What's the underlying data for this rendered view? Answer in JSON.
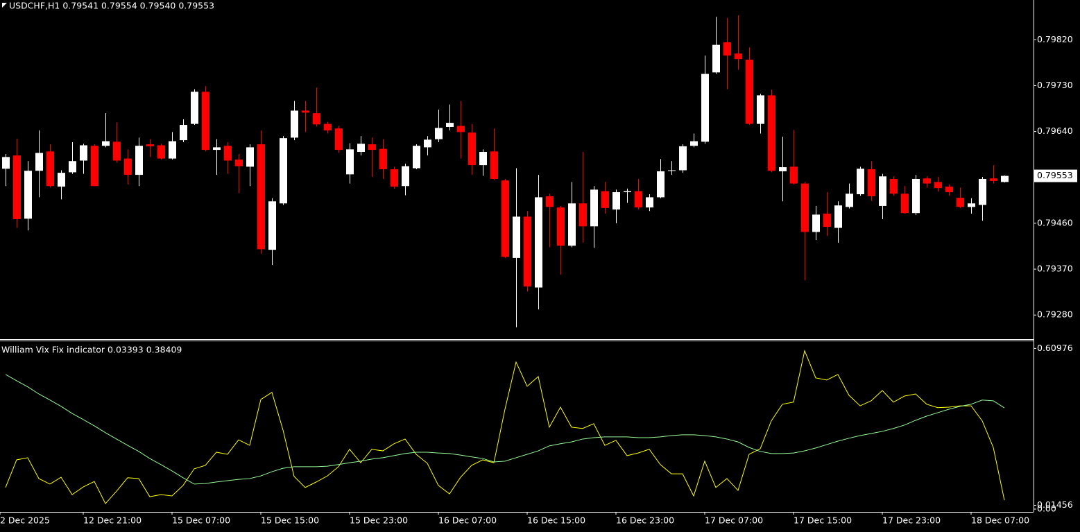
{
  "chart_data": [
    {
      "type": "candlestick",
      "title": "USDCHF,H1  0.79541 0.79554 0.79540 0.79553",
      "open": [
        0.79567,
        0.79593,
        0.79469,
        0.79563,
        0.79601,
        0.79532,
        0.7956,
        0.79583,
        0.79612,
        0.79612,
        0.7962,
        0.79587,
        0.79555,
        0.79615,
        0.79613,
        0.79587,
        0.79623,
        0.79655,
        0.79718,
        0.79604,
        0.79612,
        0.79585,
        0.79571,
        0.79615,
        0.79408,
        0.79499,
        0.79628,
        0.79681,
        0.79676,
        0.79655,
        0.79646,
        0.79556,
        0.796,
        0.79615,
        0.79606,
        0.79566,
        0.79533,
        0.79568,
        0.79609,
        0.79625,
        0.79649,
        0.79651,
        0.79638,
        0.79574,
        0.79601,
        0.79544,
        0.79392,
        0.79473,
        0.79334,
        0.79513,
        0.79491,
        0.79416,
        0.79499,
        0.79454,
        0.79523,
        0.79487,
        0.79521,
        0.79523,
        0.79491,
        0.79511,
        0.79563,
        0.79564,
        0.79612,
        0.7962,
        0.79756,
        0.79815,
        0.79793,
        0.79781,
        0.79655,
        0.79711,
        0.79562,
        0.79571,
        0.79538,
        0.79443,
        0.79479,
        0.79451,
        0.79492,
        0.79517,
        0.79566,
        0.79494,
        0.79547,
        0.79518,
        0.7948,
        0.79548,
        0.79541,
        0.79532,
        0.7951,
        0.79492,
        0.79496,
        0.79548,
        0.79541
      ],
      "high": [
        0.79596,
        0.79626,
        0.79582,
        0.79642,
        0.79615,
        0.79564,
        0.79619,
        0.79616,
        0.79615,
        0.79676,
        0.79658,
        0.79605,
        0.79628,
        0.79625,
        0.79616,
        0.79639,
        0.79664,
        0.79723,
        0.79729,
        0.79625,
        0.79619,
        0.79596,
        0.79615,
        0.79642,
        0.79509,
        0.79631,
        0.797,
        0.797,
        0.79726,
        0.79659,
        0.79651,
        0.79617,
        0.79631,
        0.79628,
        0.79625,
        0.79571,
        0.79577,
        0.79615,
        0.79631,
        0.79683,
        0.79693,
        0.797,
        0.79655,
        0.79605,
        0.79646,
        0.79547,
        0.79568,
        0.79484,
        0.79555,
        0.79518,
        0.79494,
        0.79541,
        0.796,
        0.79533,
        0.79541,
        0.79526,
        0.79528,
        0.79547,
        0.79517,
        0.79586,
        0.79582,
        0.79615,
        0.79636,
        0.79789,
        0.79865,
        0.79863,
        0.79868,
        0.79805,
        0.79714,
        0.79722,
        0.7963,
        0.79643,
        0.79541,
        0.79494,
        0.79521,
        0.79503,
        0.79538,
        0.79571,
        0.79582,
        0.79557,
        0.79552,
        0.79533,
        0.79555,
        0.79552,
        0.79551,
        0.79536,
        0.7953,
        0.79509,
        0.79551,
        0.79574,
        0.79554
      ],
      "low": [
        0.79533,
        0.79451,
        0.79446,
        0.79511,
        0.7953,
        0.79507,
        0.79557,
        0.79557,
        0.79533,
        0.79609,
        0.79579,
        0.79536,
        0.79533,
        0.7959,
        0.79585,
        0.79585,
        0.79619,
        0.79653,
        0.79601,
        0.79555,
        0.79557,
        0.79519,
        0.79533,
        0.794,
        0.79378,
        0.79496,
        0.79623,
        0.79639,
        0.7965,
        0.79636,
        0.79598,
        0.79538,
        0.79593,
        0.79551,
        0.79547,
        0.79528,
        0.79515,
        0.79566,
        0.79593,
        0.79619,
        0.79642,
        0.79587,
        0.79555,
        0.79553,
        0.79545,
        0.79392,
        0.79256,
        0.79326,
        0.79291,
        0.79413,
        0.79359,
        0.79413,
        0.79422,
        0.79412,
        0.79479,
        0.7946,
        0.795,
        0.79487,
        0.79484,
        0.79509,
        0.79555,
        0.79559,
        0.79609,
        0.79616,
        0.79753,
        0.79723,
        0.79761,
        0.79653,
        0.79636,
        0.7956,
        0.79503,
        0.79536,
        0.79348,
        0.79427,
        0.79435,
        0.79422,
        0.79489,
        0.79514,
        0.79504,
        0.79468,
        0.79514,
        0.79479,
        0.79476,
        0.7953,
        0.79522,
        0.79514,
        0.7949,
        0.79479,
        0.79465,
        0.79538,
        0.7954
      ],
      "close": [
        0.7959,
        0.79468,
        0.79563,
        0.79598,
        0.79533,
        0.79559,
        0.79582,
        0.79613,
        0.79533,
        0.79621,
        0.79583,
        0.79555,
        0.79612,
        0.79611,
        0.79587,
        0.79621,
        0.79653,
        0.79718,
        0.79604,
        0.79609,
        0.79583,
        0.79572,
        0.79609,
        0.79409,
        0.79503,
        0.79627,
        0.79681,
        0.79677,
        0.79654,
        0.79642,
        0.79604,
        0.79605,
        0.79616,
        0.79604,
        0.79566,
        0.79532,
        0.79572,
        0.79612,
        0.79624,
        0.79647,
        0.79657,
        0.79639,
        0.79574,
        0.796,
        0.79547,
        0.79394,
        0.79473,
        0.79336,
        0.79511,
        0.79492,
        0.79416,
        0.79499,
        0.79454,
        0.79526,
        0.7949,
        0.79521,
        0.79523,
        0.79491,
        0.79511,
        0.79562,
        0.79564,
        0.79611,
        0.79621,
        0.79753,
        0.7981,
        0.79789,
        0.79782,
        0.79655,
        0.79711,
        0.79563,
        0.7957,
        0.79538,
        0.79443,
        0.79477,
        0.79453,
        0.79495,
        0.79518,
        0.79567,
        0.79513,
        0.79552,
        0.79518,
        0.7948,
        0.79547,
        0.79538,
        0.79529,
        0.79521,
        0.79492,
        0.79499,
        0.79547,
        0.79543,
        0.79553
      ],
      "colors": {
        "up": "#ffffff",
        "down": "#ff0000"
      },
      "ylim": [
        0.79234,
        0.79898
      ],
      "yticks": [
        {
          "value": 0.7982,
          "label": "0.79820"
        },
        {
          "value": 0.7973,
          "label": "0.79730"
        },
        {
          "value": 0.7964,
          "label": "0.79640"
        },
        {
          "value": 0.7946,
          "label": "0.79460"
        },
        {
          "value": 0.7937,
          "label": "0.79370"
        },
        {
          "value": 0.7928,
          "label": "0.79280"
        }
      ]
    },
    {
      "type": "line",
      "title": "William Vix Fix indicator 0.03393 0.38409",
      "series": [
        {
          "color": "#ffff00",
          "values": [
            0.082,
            0.187,
            0.195,
            0.116,
            0.095,
            0.121,
            0.055,
            0.084,
            0.105,
            0.021,
            0.068,
            0.119,
            0.116,
            0.047,
            0.055,
            0.05,
            0.09,
            0.153,
            0.166,
            0.216,
            0.208,
            0.263,
            0.242,
            0.416,
            0.443,
            0.3,
            0.124,
            0.082,
            0.103,
            0.126,
            0.161,
            0.227,
            0.176,
            0.227,
            0.221,
            0.248,
            0.266,
            0.208,
            0.174,
            0.09,
            0.058,
            0.121,
            0.166,
            0.187,
            0.176,
            0.379,
            0.558,
            0.466,
            0.503,
            0.311,
            0.387,
            0.311,
            0.306,
            0.324,
            0.242,
            0.261,
            0.203,
            0.213,
            0.227,
            0.169,
            0.134,
            0.134,
            0.05,
            0.182,
            0.082,
            0.116,
            0.071,
            0.208,
            0.229,
            0.335,
            0.398,
            0.406,
            0.601,
            0.498,
            0.49,
            0.511,
            0.432,
            0.392,
            0.411,
            0.45,
            0.406,
            0.429,
            0.437,
            0.398,
            0.385,
            0.387,
            0.392,
            0.392,
            0.335,
            0.234,
            0.03393
          ]
        },
        {
          "color": "#98fb98",
          "values": [
            0.511,
            0.487,
            0.464,
            0.437,
            0.414,
            0.39,
            0.363,
            0.34,
            0.316,
            0.29,
            0.266,
            0.242,
            0.219,
            0.192,
            0.169,
            0.145,
            0.119,
            0.095,
            0.097,
            0.103,
            0.108,
            0.113,
            0.116,
            0.126,
            0.142,
            0.155,
            0.161,
            0.161,
            0.161,
            0.163,
            0.169,
            0.176,
            0.182,
            0.19,
            0.195,
            0.203,
            0.211,
            0.216,
            0.216,
            0.213,
            0.211,
            0.205,
            0.198,
            0.192,
            0.179,
            0.182,
            0.195,
            0.208,
            0.221,
            0.24,
            0.248,
            0.255,
            0.266,
            0.271,
            0.274,
            0.274,
            0.274,
            0.271,
            0.271,
            0.274,
            0.279,
            0.282,
            0.282,
            0.279,
            0.274,
            0.266,
            0.255,
            0.234,
            0.219,
            0.211,
            0.211,
            0.213,
            0.221,
            0.232,
            0.245,
            0.258,
            0.269,
            0.279,
            0.287,
            0.295,
            0.306,
            0.319,
            0.337,
            0.353,
            0.366,
            0.379,
            0.39,
            0.398,
            0.414,
            0.411,
            0.38409
          ]
        }
      ],
      "ylim": [
        -0.0105,
        0.637
      ],
      "yticks": [
        0.60976,
        0.01456,
        {
          "value": 0,
          "label": "0.00"
        }
      ],
      "xticks": [
        {
          "value": -0.5,
          "label": "2 Dec 2025"
        },
        {
          "value": 7,
          "label": "12 Dec 21:00"
        },
        {
          "value": 15,
          "label": "15 Dec 07:00"
        },
        {
          "value": 23,
          "label": "15 Dec 15:00"
        },
        {
          "value": 31,
          "label": "15 Dec 23:00"
        },
        {
          "value": 39,
          "label": "16 Dec 07:00"
        },
        {
          "value": 47,
          "label": "16 Dec 15:00"
        },
        {
          "value": 55,
          "label": "16 Dec 23:00"
        },
        {
          "value": 63,
          "label": "17 Dec 07:00"
        },
        {
          "value": 71,
          "label": "17 Dec 15:00"
        },
        {
          "value": 79,
          "label": "17 Dec 23:00"
        },
        {
          "value": 87,
          "label": "18 Dec 07:00"
        }
      ]
    }
  ]
}
